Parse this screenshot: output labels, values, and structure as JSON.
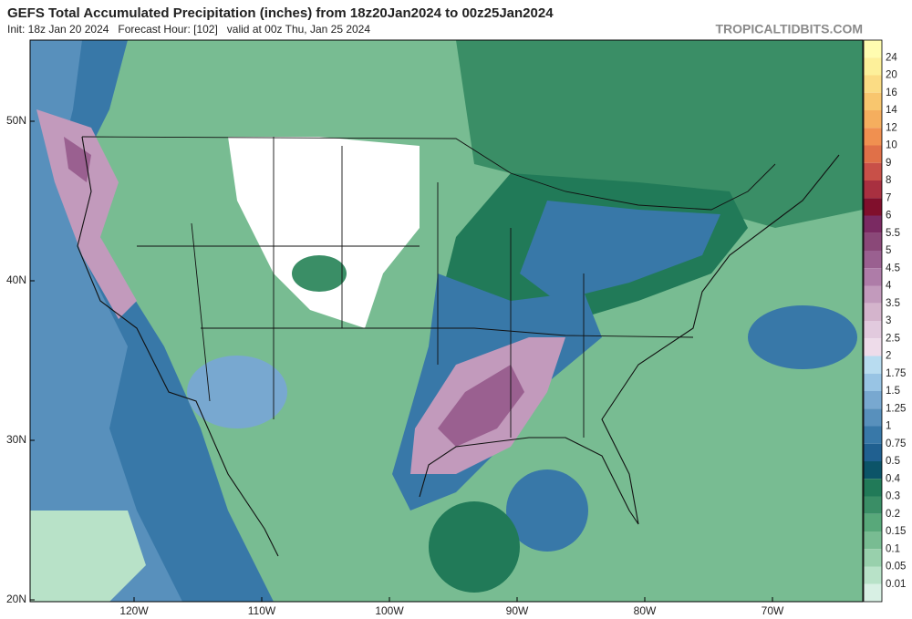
{
  "header": {
    "title": "GEFS Total Accumulated Precipitation (inches) from 18z20Jan2024 to 00z25Jan2024",
    "subtitle": "Init: 18z Jan 20 2024   Forecast Hour: [102]   valid at 00z Thu, Jan 25 2024",
    "source": "TROPICALTIDBITS.COM"
  },
  "map": {
    "lat_labels": [
      "50N",
      "40N",
      "30N",
      "20N"
    ],
    "lon_labels": [
      "120W",
      "110W",
      "100W",
      "90W",
      "80W",
      "70W"
    ]
  },
  "colorbar": {
    "top_color": "#fffcb0",
    "levels": [
      {
        "label": "24",
        "color": "#fdf09a"
      },
      {
        "label": "20",
        "color": "#fbdc84"
      },
      {
        "label": "16",
        "color": "#f8c66e"
      },
      {
        "label": "14",
        "color": "#f5ae5e"
      },
      {
        "label": "12",
        "color": "#f09050"
      },
      {
        "label": "10",
        "color": "#e07048"
      },
      {
        "label": "9",
        "color": "#c85048"
      },
      {
        "label": "8",
        "color": "#a83040"
      },
      {
        "label": "7",
        "color": "#800f2c"
      },
      {
        "label": "6",
        "color": "#7a2a62"
      },
      {
        "label": "5.5",
        "color": "#8a4878"
      },
      {
        "label": "5",
        "color": "#9a6090"
      },
      {
        "label": "4.5",
        "color": "#ae7ca8"
      },
      {
        "label": "4",
        "color": "#c29abc"
      },
      {
        "label": "3.5",
        "color": "#d4b4cc"
      },
      {
        "label": "3",
        "color": "#e2cade"
      },
      {
        "label": "2.5",
        "color": "#eedcea"
      },
      {
        "label": "2",
        "color": "#b8dcf0"
      },
      {
        "label": "1.75",
        "color": "#98c4e4"
      },
      {
        "label": "1.5",
        "color": "#78a8d0"
      },
      {
        "label": "1.25",
        "color": "#5890bc"
      },
      {
        "label": "1",
        "color": "#3878a8"
      },
      {
        "label": "0.75",
        "color": "#206090"
      },
      {
        "label": "0.5",
        "color": "#0c5468"
      },
      {
        "label": "0.4",
        "color": "#217a58"
      },
      {
        "label": "0.3",
        "color": "#3a8e66"
      },
      {
        "label": "0.2",
        "color": "#58a87a"
      },
      {
        "label": "0.15",
        "color": "#78bc92"
      },
      {
        "label": "0.1",
        "color": "#98d0ac"
      },
      {
        "label": "0.05",
        "color": "#b8e2c8"
      },
      {
        "label": "0.01",
        "color": "#d8f0e4"
      }
    ]
  }
}
